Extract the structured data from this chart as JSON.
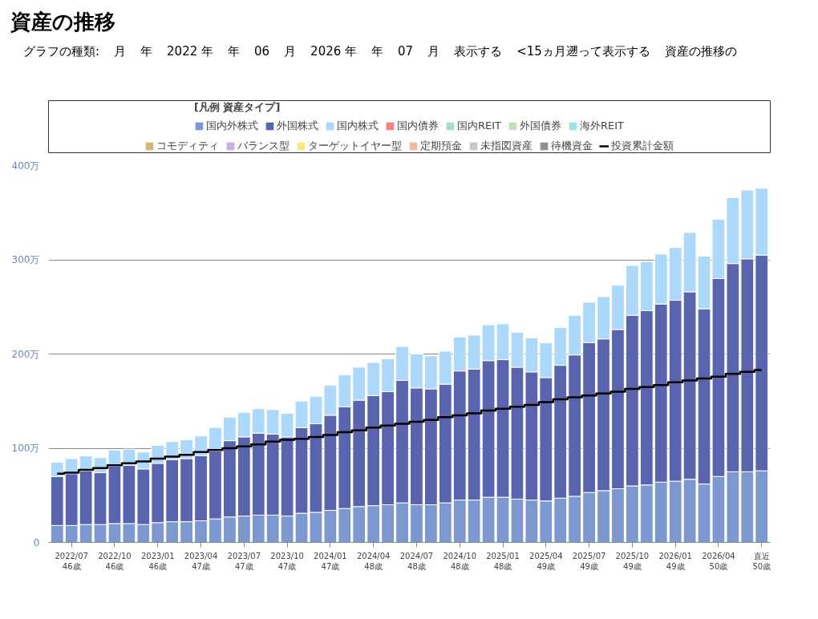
{
  "chart_data": {
    "type": "bar",
    "title": "資産の推移",
    "annotations": [
      "グラフの種類:",
      "月",
      "年",
      "2022 年",
      "年",
      "06",
      "月",
      "2026 年",
      "年",
      "07",
      "月",
      "表示する",
      "<15ヵ月遡って表示する",
      "資産の推移の"
    ],
    "legend_title": "[凡例 資産タイプ]",
    "categories": [
      null,
      "2022/07\n46歳",
      null,
      null,
      "2022/10\n46歳",
      null,
      null,
      "2023/01\n46歳",
      null,
      null,
      "2023/04\n47歳",
      null,
      null,
      "2023/07\n47歳",
      null,
      null,
      "2023/10\n47歳",
      null,
      null,
      "2024/01\n47歳",
      null,
      null,
      "2024/04\n48歳",
      null,
      null,
      "2024/07\n48歳",
      null,
      null,
      "2024/10\n48歳",
      null,
      null,
      "2025/01\n48歳",
      null,
      null,
      "2025/04\n49歳",
      null,
      null,
      "2025/07\n49歳",
      null,
      null,
      "2025/10\n49歳",
      null,
      null,
      "2026/01\n49歳",
      null,
      null,
      "2026/04\n50歳",
      null,
      null,
      "直近\n50歳"
    ],
    "stacked": true,
    "series": [
      {
        "name": "国内外株式",
        "color": "#7b98d0",
        "values": [
          18,
          18,
          19,
          19,
          20,
          20,
          19,
          21,
          22,
          22,
          23,
          25,
          27,
          28,
          29,
          29,
          28,
          31,
          32,
          34,
          36,
          38,
          39,
          40,
          42,
          40,
          40,
          42,
          45,
          45,
          48,
          48,
          46,
          45,
          44,
          47,
          49,
          53,
          55,
          57,
          60,
          61,
          64,
          65,
          67,
          62,
          70,
          75,
          75,
          76
        ]
      },
      {
        "name": "外国株式",
        "color": "#5a64ae",
        "values": [
          52,
          55,
          57,
          55,
          61,
          62,
          59,
          63,
          66,
          67,
          69,
          72,
          81,
          84,
          87,
          86,
          84,
          91,
          94,
          101,
          108,
          113,
          117,
          120,
          130,
          124,
          123,
          126,
          137,
          139,
          145,
          146,
          140,
          136,
          131,
          141,
          150,
          159,
          161,
          169,
          181,
          185,
          189,
          192,
          199,
          186,
          210,
          221,
          226,
          229
        ]
      },
      {
        "name": "国内株式",
        "color": "#acd8fc",
        "values": [
          15,
          16,
          16,
          16,
          17,
          17,
          18,
          19,
          19,
          20,
          21,
          25,
          25,
          26,
          26,
          26,
          25,
          28,
          29,
          32,
          34,
          35,
          35,
          35,
          36,
          36,
          35,
          35,
          36,
          36,
          38,
          38,
          37,
          36,
          37,
          40,
          42,
          43,
          45,
          47,
          53,
          52,
          53,
          56,
          63,
          56,
          63,
          70,
          73,
          71
        ]
      },
      {
        "name": "国内債券",
        "color": "#f4837d",
        "values": [
          null,
          null,
          null,
          null,
          null,
          null,
          null,
          null,
          null,
          null,
          null,
          null,
          null,
          null,
          null,
          null,
          null,
          null,
          null,
          null,
          null,
          null,
          null,
          null,
          null,
          null,
          null,
          null,
          null,
          null,
          null,
          null,
          null,
          null,
          null,
          null,
          null,
          null,
          null,
          null,
          null,
          null,
          null,
          null,
          null,
          null,
          null,
          null,
          null,
          null
        ]
      },
      {
        "name": "国内REIT",
        "color": "#a8dcc8",
        "values": [
          null,
          null,
          null,
          null,
          null,
          null,
          null,
          null,
          null,
          null,
          null,
          null,
          null,
          null,
          null,
          null,
          null,
          null,
          null,
          null,
          null,
          null,
          null,
          null,
          null,
          null,
          null,
          null,
          null,
          null,
          null,
          null,
          null,
          null,
          null,
          null,
          null,
          null,
          null,
          null,
          null,
          null,
          null,
          null,
          null,
          null,
          null,
          null,
          null,
          null
        ]
      },
      {
        "name": "外国債券",
        "color": "#c5dcc0",
        "values": [
          null,
          null,
          null,
          null,
          null,
          null,
          null,
          null,
          null,
          null,
          null,
          null,
          null,
          null,
          null,
          null,
          null,
          null,
          null,
          null,
          null,
          null,
          null,
          null,
          null,
          null,
          null,
          null,
          null,
          null,
          null,
          null,
          null,
          null,
          null,
          null,
          null,
          null,
          null,
          null,
          null,
          null,
          null,
          null,
          null,
          null,
          null,
          null,
          null,
          null
        ]
      },
      {
        "name": "海外REIT",
        "color": "#99e4e4",
        "values": [
          null,
          null,
          null,
          null,
          null,
          null,
          null,
          null,
          null,
          null,
          null,
          null,
          null,
          null,
          null,
          null,
          null,
          null,
          null,
          null,
          null,
          null,
          null,
          null,
          null,
          null,
          null,
          null,
          null,
          null,
          null,
          null,
          null,
          null,
          null,
          null,
          null,
          null,
          null,
          null,
          null,
          null,
          null,
          null,
          null,
          null,
          null,
          null,
          null,
          null
        ]
      },
      {
        "name": "コモディティ",
        "color": "#d4b878",
        "values": [
          null,
          null,
          null,
          null,
          null,
          null,
          null,
          null,
          null,
          null,
          null,
          null,
          null,
          null,
          null,
          null,
          null,
          null,
          null,
          null,
          null,
          null,
          null,
          null,
          null,
          null,
          null,
          null,
          null,
          null,
          null,
          null,
          null,
          null,
          null,
          null,
          null,
          null,
          null,
          null,
          null,
          null,
          null,
          null,
          null,
          null,
          null,
          null,
          null,
          null
        ]
      },
      {
        "name": "バランス型",
        "color": "#c8b0e0",
        "values": [
          null,
          null,
          null,
          null,
          null,
          null,
          null,
          null,
          null,
          null,
          null,
          null,
          null,
          null,
          null,
          null,
          null,
          null,
          null,
          null,
          null,
          null,
          null,
          null,
          null,
          null,
          null,
          null,
          null,
          null,
          null,
          null,
          null,
          null,
          null,
          null,
          null,
          null,
          null,
          null,
          null,
          null,
          null,
          null,
          null,
          null,
          null,
          null,
          null,
          null
        ]
      },
      {
        "name": "ターゲットイヤー型",
        "color": "#f8e880",
        "values": [
          null,
          null,
          null,
          null,
          null,
          null,
          null,
          null,
          null,
          null,
          null,
          null,
          null,
          null,
          null,
          null,
          null,
          null,
          null,
          null,
          null,
          null,
          null,
          null,
          null,
          null,
          null,
          null,
          null,
          null,
          null,
          null,
          null,
          null,
          null,
          null,
          null,
          null,
          null,
          null,
          null,
          null,
          null,
          null,
          null,
          null,
          null,
          null,
          null,
          null
        ]
      },
      {
        "name": "定期預金",
        "color": "#f8b8a0",
        "values": [
          null,
          null,
          null,
          null,
          null,
          null,
          null,
          null,
          null,
          null,
          null,
          null,
          null,
          null,
          null,
          null,
          null,
          null,
          null,
          null,
          null,
          null,
          null,
          null,
          null,
          null,
          null,
          null,
          null,
          null,
          null,
          null,
          null,
          null,
          null,
          null,
          null,
          null,
          null,
          null,
          null,
          null,
          null,
          null,
          null,
          null,
          null,
          null,
          null,
          null
        ]
      },
      {
        "name": "未指図資産",
        "color": "#c8c8c8",
        "values": [
          null,
          null,
          null,
          null,
          null,
          null,
          null,
          null,
          null,
          null,
          null,
          null,
          null,
          null,
          null,
          null,
          null,
          null,
          null,
          null,
          null,
          null,
          null,
          null,
          null,
          null,
          null,
          null,
          null,
          null,
          null,
          null,
          null,
          null,
          null,
          null,
          null,
          null,
          null,
          null,
          null,
          null,
          null,
          null,
          null,
          null,
          null,
          null,
          null,
          null
        ]
      },
      {
        "name": "待機資金",
        "color": "#909090",
        "values": [
          null,
          null,
          null,
          null,
          null,
          null,
          null,
          null,
          null,
          null,
          null,
          null,
          null,
          null,
          null,
          null,
          null,
          null,
          null,
          null,
          null,
          null,
          null,
          null,
          null,
          null,
          null,
          null,
          null,
          null,
          null,
          null,
          null,
          null,
          null,
          null,
          null,
          null,
          null,
          null,
          null,
          null,
          null,
          null,
          null,
          null,
          null,
          null,
          null,
          null
        ]
      },
      {
        "name": "投資累計金額",
        "type": "step",
        "color": "#000000",
        "values": [
          73,
          74,
          77,
          79,
          82,
          84,
          86,
          89,
          91,
          93,
          96,
          98,
          100,
          102,
          104,
          107,
          109,
          110,
          112,
          114,
          117,
          119,
          122,
          124,
          126,
          128,
          130,
          133,
          135,
          137,
          140,
          142,
          144,
          146,
          149,
          152,
          154,
          156,
          158,
          160,
          163,
          165,
          167,
          170,
          172,
          174,
          176,
          179,
          181,
          183
        ]
      }
    ],
    "ylim": [
      0,
      400
    ],
    "yticks": [
      0,
      {
        "value": 100,
        "label": "100万"
      },
      {
        "value": 200,
        "label": "200万"
      },
      {
        "value": 300,
        "label": "300万"
      },
      {
        "value": 400,
        "label": "400万"
      }
    ],
    "grid": "y",
    "legend": "top"
  }
}
